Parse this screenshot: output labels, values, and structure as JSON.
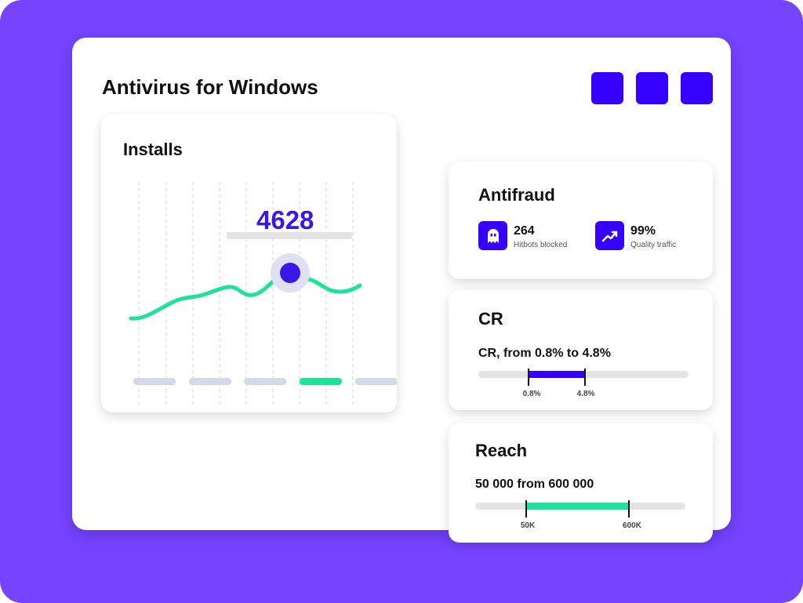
{
  "app": {
    "title": "Antivirus for Windows",
    "window_buttons": [
      "window-button-1",
      "window-button-2",
      "window-button-3"
    ],
    "accent_color": "#3600ff",
    "background_color": "#7444ff",
    "green_color": "#1fe29a"
  },
  "installs": {
    "title": "Installs",
    "highlight_value": "4628",
    "selected_tab_index": 3,
    "tab_count": 5
  },
  "antifraud": {
    "title": "Antifraud",
    "stats": [
      {
        "icon": "ghost-icon",
        "value": "264",
        "label": "Hitbots blocked"
      },
      {
        "icon": "trending-up-icon",
        "value": "99%",
        "label": "Quality traffic"
      }
    ]
  },
  "cr": {
    "title": "CR",
    "caption": "CR, from 0.8% to 4.8%",
    "min_label": "0.8%",
    "max_label": "4.8%",
    "fill_color": "#3600ff"
  },
  "reach": {
    "title": "Reach",
    "caption": "50 000 from 600 000",
    "min_label": "50K",
    "max_label": "600K",
    "fill_color": "#1fe29a"
  }
}
